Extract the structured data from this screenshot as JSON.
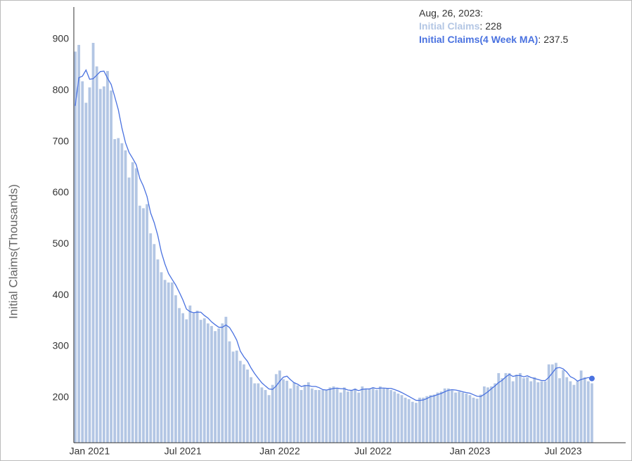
{
  "chart_data": {
    "type": "bar-line",
    "y_label": "Initial Claims(Thousands)",
    "ylim": [
      112,
      963
    ],
    "yticks": [
      200,
      300,
      400,
      500,
      600,
      700,
      800,
      900
    ],
    "xlim": [
      -0.4,
      144.4
    ],
    "xticks": [
      {
        "value": 4,
        "label": "Jan 2021"
      },
      {
        "value": 30,
        "label": "Jul 2021"
      },
      {
        "value": 57,
        "label": "Jan 2022"
      },
      {
        "value": 83,
        "label": "Jul 2022"
      },
      {
        "value": 110,
        "label": "Jan 2023"
      },
      {
        "value": 136,
        "label": "Jul 2023"
      }
    ],
    "series": [
      {
        "name": "Initial Claims",
        "type": "bar",
        "color": "#b3c6e4",
        "values": [
          876,
          889,
          818,
          776,
          806,
          893,
          847,
          803,
          808,
          838,
          800,
          705,
          707,
          697,
          683,
          630,
          660,
          648,
          575,
          570,
          578,
          521,
          500,
          470,
          445,
          430,
          425,
          425,
          400,
          375,
          365,
          353,
          380,
          365,
          370,
          352,
          355,
          345,
          340,
          330,
          335,
          345,
          358,
          310,
          290,
          292,
          272,
          265,
          255,
          240,
          228,
          228,
          220,
          215,
          205,
          225,
          246,
          253,
          236,
          233,
          218,
          230,
          224,
          215,
          225,
          230,
          218,
          215,
          215,
          215,
          215,
          220,
          222,
          218,
          210,
          220,
          212,
          215,
          218,
          210,
          222,
          218,
          218,
          220,
          215,
          222,
          218,
          218,
          215,
          212,
          208,
          205,
          200,
          197,
          192,
          190,
          200,
          200,
          203,
          205,
          206,
          210,
          212,
          218,
          218,
          214,
          210,
          212,
          210,
          208,
          205,
          200,
          198,
          206,
          222,
          220,
          222,
          228,
          248,
          238,
          248,
          248,
          232,
          245,
          248,
          238,
          240,
          232,
          240,
          230,
          232,
          232,
          265,
          265,
          268,
          238,
          254,
          240,
          232,
          225,
          232,
          253,
          240,
          232,
          228
        ]
      },
      {
        "name": "Initial Claims(4 Week MA)",
        "type": "line",
        "color": "#4a72e0",
        "values": [
          770,
          825,
          828,
          840,
          822,
          823,
          830,
          837,
          837.8,
          824,
          812,
          788,
          762.5,
          727,
          698,
          679,
          667.5,
          655,
          628,
          613,
          593,
          561,
          542,
          517,
          484,
          461,
          442.5,
          431,
          420,
          406,
          391,
          373,
          368,
          366,
          367,
          367,
          360.5,
          355.5,
          348,
          342.5,
          337.5,
          337.5,
          342,
          337,
          325.75,
          312.5,
          291,
          279.75,
          271,
          258,
          247,
          237.75,
          229,
          222.75,
          217,
          216.25,
          222.75,
          232.25,
          240,
          242,
          235,
          229.25,
          226.25,
          221.75,
          223.5,
          223.5,
          222,
          222,
          219.5,
          215.75,
          215,
          216.25,
          218,
          218.75,
          217.5,
          217.5,
          215,
          214.25,
          216.25,
          213.75,
          216.25,
          217,
          217,
          219.5,
          217.75,
          218.75,
          218.75,
          218.25,
          218.25,
          215.75,
          213.25,
          210,
          206.25,
          202.5,
          198.5,
          194.75,
          194.75,
          195.5,
          198.25,
          202,
          203.5,
          206,
          208.25,
          211.5,
          214.5,
          215.5,
          215,
          213.5,
          211.5,
          210,
          208.75,
          205.75,
          202.75,
          202.25,
          206.5,
          211.5,
          217.5,
          223,
          229.5,
          234,
          240.5,
          245.5,
          241.5,
          243.25,
          243.25,
          240.75,
          242.75,
          239.5,
          237.5,
          235.5,
          233.5,
          233.5,
          239.75,
          248.5,
          257.5,
          259,
          256.25,
          250,
          241,
          237.75,
          232.25,
          235.5,
          237.5,
          239.25,
          237.5
        ]
      }
    ],
    "tooltip": {
      "title": "Aug, 26, 2023:",
      "separator": ":",
      "index": 144
    }
  }
}
